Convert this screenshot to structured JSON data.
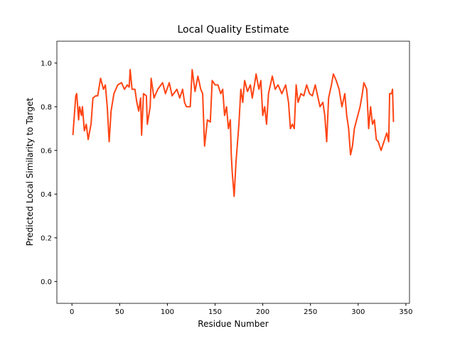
{
  "chart_data": {
    "type": "line",
    "title": "Local Quality Estimate",
    "x_label": "Residue Number",
    "y_label": "Predicted Local Similarity to Target",
    "xlim": [
      -15.8,
      353.8
    ],
    "ylim": [
      -0.1,
      1.1
    ],
    "xticks": [
      0,
      50,
      100,
      150,
      200,
      250,
      300,
      350
    ],
    "yticks": [
      {
        "value": 0,
        "label": "0.0"
      },
      0.2,
      0.4,
      0.6,
      0.8,
      {
        "value": 1,
        "label": "1.0"
      }
    ],
    "series": [
      {
        "color": "#ff4514",
        "x": [
          1,
          4,
          5,
          7,
          8,
          10,
          11,
          13,
          15,
          17,
          20,
          22,
          25,
          27,
          30,
          33,
          35,
          37,
          39,
          41,
          44,
          48,
          52,
          55,
          58,
          60,
          61,
          63,
          66,
          68,
          70,
          72,
          73,
          75,
          78,
          79,
          82,
          83,
          86,
          90,
          95,
          98,
          102,
          105,
          110,
          113,
          116,
          118,
          120,
          124,
          126,
          129,
          132,
          135,
          137,
          139,
          142,
          145,
          147,
          150,
          153,
          156,
          158,
          160,
          162,
          164,
          166,
          167,
          168,
          170,
          172,
          175,
          177,
          179,
          181,
          184,
          187,
          189,
          192,
          193,
          196,
          198,
          200,
          202,
          204,
          206,
          208,
          210,
          213,
          216,
          220,
          224,
          227,
          229,
          231,
          233,
          235,
          237,
          240,
          243,
          246,
          249,
          252,
          255,
          260,
          263,
          265,
          267,
          269,
          272,
          274,
          277,
          280,
          283,
          286,
          288,
          290,
          292,
          294,
          296,
          299,
          302,
          304,
          306,
          309,
          311,
          313,
          315,
          317,
          319,
          321,
          324,
          327,
          330,
          332,
          333,
          335,
          336,
          337
        ],
        "values": [
          0.67,
          0.85,
          0.86,
          0.74,
          0.8,
          0.76,
          0.8,
          0.69,
          0.72,
          0.65,
          0.72,
          0.84,
          0.85,
          0.85,
          0.93,
          0.88,
          0.9,
          0.8,
          0.64,
          0.78,
          0.86,
          0.9,
          0.91,
          0.88,
          0.9,
          0.89,
          0.97,
          0.88,
          0.88,
          0.82,
          0.78,
          0.84,
          0.67,
          0.86,
          0.85,
          0.72,
          0.8,
          0.93,
          0.84,
          0.88,
          0.91,
          0.86,
          0.91,
          0.85,
          0.88,
          0.84,
          0.88,
          0.82,
          0.8,
          0.8,
          0.97,
          0.87,
          0.94,
          0.88,
          0.86,
          0.62,
          0.74,
          0.73,
          0.92,
          0.9,
          0.9,
          0.86,
          0.88,
          0.76,
          0.8,
          0.7,
          0.74,
          0.58,
          0.5,
          0.39,
          0.55,
          0.72,
          0.88,
          0.82,
          0.92,
          0.87,
          0.9,
          0.84,
          0.92,
          0.95,
          0.88,
          0.92,
          0.76,
          0.8,
          0.72,
          0.86,
          0.9,
          0.94,
          0.88,
          0.9,
          0.86,
          0.9,
          0.82,
          0.7,
          0.72,
          0.7,
          0.9,
          0.82,
          0.86,
          0.85,
          0.9,
          0.86,
          0.85,
          0.9,
          0.8,
          0.82,
          0.76,
          0.64,
          0.84,
          0.9,
          0.95,
          0.92,
          0.88,
          0.8,
          0.86,
          0.76,
          0.7,
          0.58,
          0.62,
          0.7,
          0.75,
          0.8,
          0.85,
          0.91,
          0.88,
          0.7,
          0.8,
          0.72,
          0.74,
          0.65,
          0.64,
          0.6,
          0.64,
          0.68,
          0.64,
          0.86,
          0.86,
          0.88,
          0.73
        ]
      }
    ]
  }
}
